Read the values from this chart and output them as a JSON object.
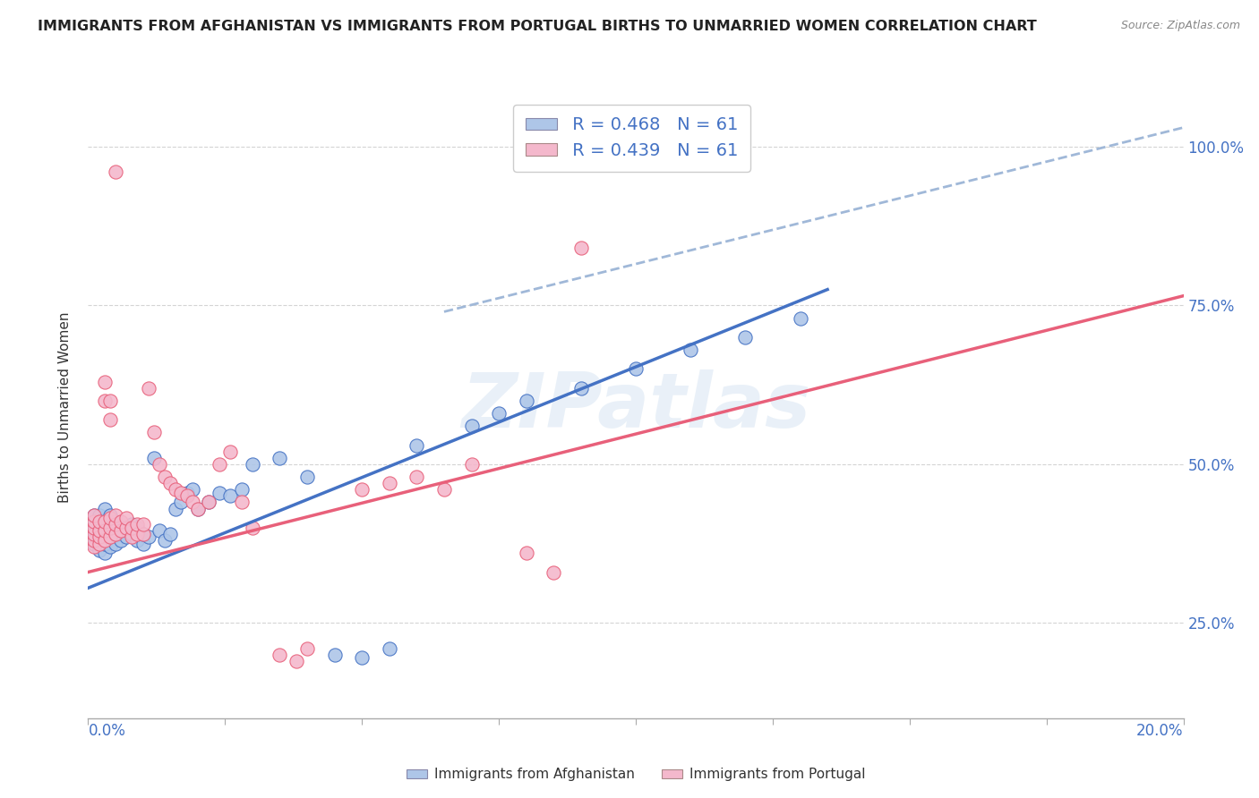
{
  "title": "IMMIGRANTS FROM AFGHANISTAN VS IMMIGRANTS FROM PORTUGAL BIRTHS TO UNMARRIED WOMEN CORRELATION CHART",
  "source": "Source: ZipAtlas.com",
  "ylabel": "Births to Unmarried Women",
  "watermark": "ZIPatlas",
  "afghanistan_color": "#aec6e8",
  "portugal_color": "#f4b8cc",
  "line_afghanistan_color": "#4472c4",
  "line_portugal_color": "#e8607a",
  "dashed_line_color": "#a0b8d8",
  "xlim": [
    0.0,
    0.2
  ],
  "ylim": [
    0.1,
    1.08
  ],
  "afghanistan_scatter": [
    [
      0.001,
      0.375
    ],
    [
      0.001,
      0.385
    ],
    [
      0.001,
      0.395
    ],
    [
      0.001,
      0.41
    ],
    [
      0.001,
      0.42
    ],
    [
      0.002,
      0.365
    ],
    [
      0.002,
      0.38
    ],
    [
      0.002,
      0.39
    ],
    [
      0.002,
      0.4
    ],
    [
      0.002,
      0.42
    ],
    [
      0.003,
      0.36
    ],
    [
      0.003,
      0.375
    ],
    [
      0.003,
      0.39
    ],
    [
      0.003,
      0.41
    ],
    [
      0.003,
      0.43
    ],
    [
      0.004,
      0.37
    ],
    [
      0.004,
      0.385
    ],
    [
      0.004,
      0.4
    ],
    [
      0.004,
      0.42
    ],
    [
      0.005,
      0.375
    ],
    [
      0.005,
      0.39
    ],
    [
      0.005,
      0.41
    ],
    [
      0.006,
      0.38
    ],
    [
      0.006,
      0.395
    ],
    [
      0.007,
      0.385
    ],
    [
      0.007,
      0.4
    ],
    [
      0.008,
      0.39
    ],
    [
      0.008,
      0.405
    ],
    [
      0.009,
      0.38
    ],
    [
      0.009,
      0.4
    ],
    [
      0.01,
      0.375
    ],
    [
      0.01,
      0.39
    ],
    [
      0.011,
      0.385
    ],
    [
      0.012,
      0.51
    ],
    [
      0.013,
      0.395
    ],
    [
      0.014,
      0.38
    ],
    [
      0.015,
      0.39
    ],
    [
      0.016,
      0.43
    ],
    [
      0.017,
      0.44
    ],
    [
      0.018,
      0.455
    ],
    [
      0.019,
      0.46
    ],
    [
      0.02,
      0.43
    ],
    [
      0.022,
      0.44
    ],
    [
      0.024,
      0.455
    ],
    [
      0.026,
      0.45
    ],
    [
      0.028,
      0.46
    ],
    [
      0.03,
      0.5
    ],
    [
      0.035,
      0.51
    ],
    [
      0.04,
      0.48
    ],
    [
      0.045,
      0.2
    ],
    [
      0.05,
      0.195
    ],
    [
      0.055,
      0.21
    ],
    [
      0.06,
      0.53
    ],
    [
      0.07,
      0.56
    ],
    [
      0.075,
      0.58
    ],
    [
      0.08,
      0.6
    ],
    [
      0.09,
      0.62
    ],
    [
      0.1,
      0.65
    ],
    [
      0.11,
      0.68
    ],
    [
      0.12,
      0.7
    ],
    [
      0.13,
      0.73
    ]
  ],
  "portugal_scatter": [
    [
      0.001,
      0.37
    ],
    [
      0.001,
      0.38
    ],
    [
      0.001,
      0.39
    ],
    [
      0.001,
      0.4
    ],
    [
      0.001,
      0.41
    ],
    [
      0.001,
      0.42
    ],
    [
      0.002,
      0.375
    ],
    [
      0.002,
      0.385
    ],
    [
      0.002,
      0.395
    ],
    [
      0.002,
      0.41
    ],
    [
      0.003,
      0.38
    ],
    [
      0.003,
      0.395
    ],
    [
      0.003,
      0.41
    ],
    [
      0.003,
      0.6
    ],
    [
      0.003,
      0.63
    ],
    [
      0.004,
      0.385
    ],
    [
      0.004,
      0.4
    ],
    [
      0.004,
      0.415
    ],
    [
      0.004,
      0.57
    ],
    [
      0.004,
      0.6
    ],
    [
      0.005,
      0.39
    ],
    [
      0.005,
      0.405
    ],
    [
      0.005,
      0.42
    ],
    [
      0.006,
      0.395
    ],
    [
      0.006,
      0.41
    ],
    [
      0.007,
      0.4
    ],
    [
      0.007,
      0.415
    ],
    [
      0.008,
      0.385
    ],
    [
      0.008,
      0.4
    ],
    [
      0.009,
      0.39
    ],
    [
      0.009,
      0.405
    ],
    [
      0.01,
      0.39
    ],
    [
      0.01,
      0.405
    ],
    [
      0.011,
      0.62
    ],
    [
      0.012,
      0.55
    ],
    [
      0.013,
      0.5
    ],
    [
      0.014,
      0.48
    ],
    [
      0.015,
      0.47
    ],
    [
      0.016,
      0.46
    ],
    [
      0.017,
      0.455
    ],
    [
      0.018,
      0.45
    ],
    [
      0.019,
      0.44
    ],
    [
      0.02,
      0.43
    ],
    [
      0.022,
      0.44
    ],
    [
      0.024,
      0.5
    ],
    [
      0.026,
      0.52
    ],
    [
      0.028,
      0.44
    ],
    [
      0.03,
      0.4
    ],
    [
      0.035,
      0.2
    ],
    [
      0.038,
      0.19
    ],
    [
      0.04,
      0.21
    ],
    [
      0.05,
      0.46
    ],
    [
      0.055,
      0.47
    ],
    [
      0.06,
      0.48
    ],
    [
      0.065,
      0.46
    ],
    [
      0.07,
      0.5
    ],
    [
      0.08,
      0.36
    ],
    [
      0.085,
      0.33
    ],
    [
      0.09,
      0.84
    ],
    [
      0.005,
      0.96
    ],
    [
      0.09,
      1.0
    ]
  ],
  "afg_line_x": [
    0.0,
    0.135
  ],
  "afg_line_y": [
    0.305,
    0.775
  ],
  "por_line_x": [
    0.0,
    0.2
  ],
  "por_line_y": [
    0.33,
    0.765
  ],
  "dash_line_x": [
    0.065,
    0.2
  ],
  "dash_line_y": [
    0.74,
    1.03
  ],
  "background_color": "#ffffff",
  "grid_color": "#d0d0d0",
  "title_color": "#222222",
  "axis_label_color": "#4472c4",
  "tick_label_color": "#4472c4",
  "yticks": [
    0.25,
    0.5,
    0.75,
    1.0
  ],
  "ytick_labels": [
    "25.0%",
    "50.0%",
    "75.0%",
    "100.0%"
  ],
  "xtick_left_label": "0.0%",
  "xtick_right_label": "20.0%",
  "legend1_label": " R = 0.468   N = 61",
  "legend2_label": " R = 0.439   N = 61",
  "bottom_legend1": "Immigrants from Afghanistan",
  "bottom_legend2": "Immigrants from Portugal"
}
